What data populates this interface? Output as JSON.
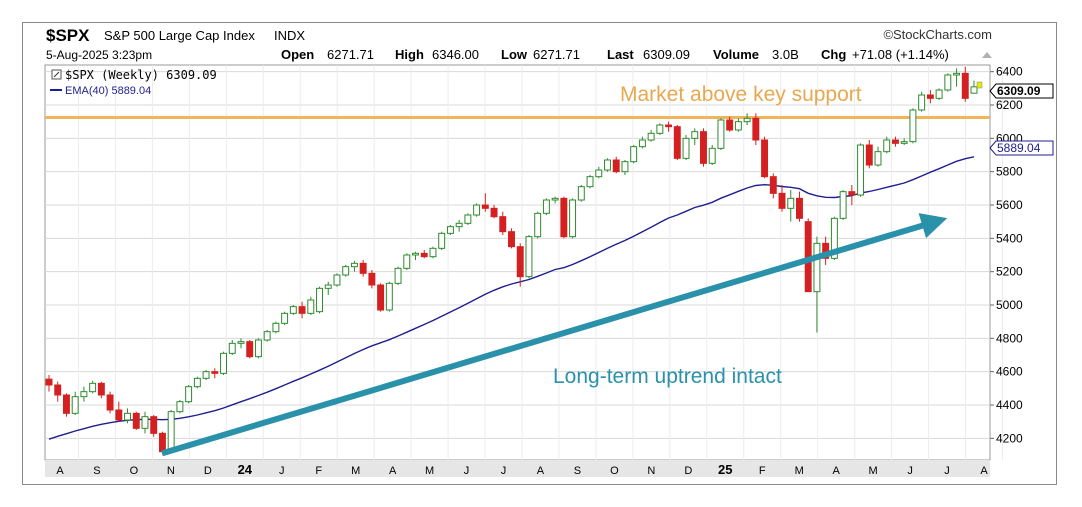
{
  "header": {
    "symbol": "$SPX",
    "name": "S&P 500 Large Cap Index",
    "exchange": "INDX",
    "copyright": "©StockCharts.com",
    "datetime": "5-Aug-2025 3:23pm",
    "open_label": "Open",
    "open": "6271.71",
    "high_label": "High",
    "high": "6346.00",
    "low_label": "Low",
    "low": "6271.71",
    "last_label": "Last",
    "last": "6309.09",
    "volume_label": "Volume",
    "volume": "3.0B",
    "chg_label": "Chg",
    "chg": "+71.08 (+1.14%)"
  },
  "legend": {
    "price_entry": "$SPX (Weekly) 6309.09",
    "ema_entry": "EMA(40) 5889.04"
  },
  "annotations": {
    "support_label": "Market above key support",
    "trend_label": "Long-term uptrend intact"
  },
  "price_tags": {
    "last": "6309.09",
    "ema": "5889.04"
  },
  "colors": {
    "up": "#2e8b2e",
    "down": "#d42020",
    "ema": "#1f1f8f",
    "support": "#f0b45a",
    "support_text": "#e8a850",
    "trend": "#2a91aa",
    "trend_text": "#2a91aa",
    "grid": "#d8d8d8",
    "axis_bg": "#e6e6e6"
  },
  "chart_data": {
    "type": "candlestick",
    "interval": "weekly",
    "ylim": [
      4070,
      6440
    ],
    "yticks": [
      4200,
      4400,
      4600,
      4800,
      5000,
      5200,
      5400,
      5600,
      5800,
      6000,
      6200,
      6400
    ],
    "x_ticks": [
      "A",
      "S",
      "O",
      "N",
      "D",
      "24",
      "J",
      "F",
      "M",
      "A",
      "M",
      "J",
      "J",
      "A",
      "S",
      "O",
      "N",
      "D",
      "25",
      "F",
      "M",
      "A",
      "M",
      "J",
      "J",
      "A"
    ],
    "support_level": 6125,
    "trend_line": {
      "from": [
        "2023-10-27",
        4110
      ],
      "to": [
        "2025-07-11",
        5490
      ]
    },
    "ohlc": [
      [
        4555,
        4580,
        4480,
        4520
      ],
      [
        4520,
        4540,
        4420,
        4460
      ],
      [
        4460,
        4470,
        4330,
        4350
      ],
      [
        4350,
        4480,
        4340,
        4450
      ],
      [
        4450,
        4510,
        4420,
        4480
      ],
      [
        4480,
        4545,
        4470,
        4530
      ],
      [
        4530,
        4540,
        4440,
        4460
      ],
      [
        4460,
        4480,
        4350,
        4370
      ],
      [
        4370,
        4420,
        4300,
        4310
      ],
      [
        4310,
        4380,
        4290,
        4350
      ],
      [
        4350,
        4360,
        4250,
        4260
      ],
      [
        4260,
        4360,
        4230,
        4330
      ],
      [
        4330,
        4340,
        4210,
        4230
      ],
      [
        4230,
        4240,
        4110,
        4120
      ],
      [
        4120,
        4370,
        4115,
        4360
      ],
      [
        4360,
        4430,
        4350,
        4420
      ],
      [
        4420,
        4520,
        4410,
        4510
      ],
      [
        4510,
        4570,
        4500,
        4560
      ],
      [
        4560,
        4610,
        4550,
        4600
      ],
      [
        4600,
        4620,
        4560,
        4590
      ],
      [
        4590,
        4720,
        4580,
        4710
      ],
      [
        4710,
        4790,
        4700,
        4770
      ],
      [
        4770,
        4800,
        4740,
        4780
      ],
      [
        4780,
        4790,
        4680,
        4690
      ],
      [
        4690,
        4800,
        4680,
        4790
      ],
      [
        4790,
        4850,
        4780,
        4840
      ],
      [
        4840,
        4900,
        4830,
        4890
      ],
      [
        4890,
        4960,
        4880,
        4950
      ],
      [
        4950,
        5000,
        4940,
        4990
      ],
      [
        4990,
        5020,
        4920,
        4950
      ],
      [
        4950,
        5050,
        4940,
        5030
      ],
      [
        4960,
        5110,
        4950,
        5100
      ],
      [
        5100,
        5140,
        5060,
        5120
      ],
      [
        5120,
        5190,
        5110,
        5180
      ],
      [
        5180,
        5240,
        5170,
        5230
      ],
      [
        5230,
        5265,
        5200,
        5250
      ],
      [
        5250,
        5270,
        5170,
        5190
      ],
      [
        5190,
        5210,
        5100,
        5120
      ],
      [
        5120,
        5130,
        4960,
        4970
      ],
      [
        4970,
        5140,
        4960,
        5130
      ],
      [
        5130,
        5230,
        5120,
        5220
      ],
      [
        5220,
        5310,
        5210,
        5300
      ],
      [
        5300,
        5320,
        5270,
        5310
      ],
      [
        5310,
        5330,
        5280,
        5290
      ],
      [
        5290,
        5350,
        5280,
        5340
      ],
      [
        5340,
        5440,
        5330,
        5430
      ],
      [
        5430,
        5480,
        5420,
        5470
      ],
      [
        5470,
        5510,
        5440,
        5490
      ],
      [
        5490,
        5550,
        5480,
        5540
      ],
      [
        5540,
        5610,
        5530,
        5600
      ],
      [
        5600,
        5670,
        5560,
        5580
      ],
      [
        5580,
        5600,
        5520,
        5530
      ],
      [
        5530,
        5560,
        5420,
        5440
      ],
      [
        5440,
        5460,
        5340,
        5350
      ],
      [
        5350,
        5370,
        5110,
        5170
      ],
      [
        5170,
        5420,
        5160,
        5410
      ],
      [
        5410,
        5560,
        5400,
        5550
      ],
      [
        5550,
        5640,
        5540,
        5630
      ],
      [
        5630,
        5650,
        5610,
        5640
      ],
      [
        5640,
        5650,
        5400,
        5410
      ],
      [
        5410,
        5640,
        5400,
        5630
      ],
      [
        5630,
        5720,
        5620,
        5710
      ],
      [
        5710,
        5780,
        5700,
        5770
      ],
      [
        5770,
        5830,
        5760,
        5810
      ],
      [
        5810,
        5880,
        5800,
        5870
      ],
      [
        5870,
        5890,
        5790,
        5800
      ],
      [
        5800,
        5870,
        5780,
        5860
      ],
      [
        5860,
        5960,
        5850,
        5950
      ],
      [
        5950,
        6010,
        5940,
        5990
      ],
      [
        5990,
        6050,
        5980,
        6030
      ],
      [
        6030,
        6090,
        6020,
        6080
      ],
      [
        6080,
        6100,
        6040,
        6070
      ],
      [
        6070,
        6080,
        5870,
        5880
      ],
      [
        5880,
        6020,
        5870,
        6000
      ],
      [
        6000,
        6060,
        5960,
        6040
      ],
      [
        6040,
        6060,
        5830,
        5850
      ],
      [
        5850,
        5960,
        5840,
        5940
      ],
      [
        5940,
        6120,
        5930,
        6110
      ],
      [
        6110,
        6130,
        6040,
        6050
      ],
      [
        6050,
        6120,
        6040,
        6100
      ],
      [
        6100,
        6150,
        6080,
        6120
      ],
      [
        6120,
        6150,
        5960,
        5990
      ],
      [
        5990,
        6010,
        5760,
        5770
      ],
      [
        5770,
        5790,
        5640,
        5670
      ],
      [
        5670,
        5720,
        5560,
        5580
      ],
      [
        5580,
        5690,
        5500,
        5640
      ],
      [
        5640,
        5680,
        5500,
        5520
      ],
      [
        5500,
        5520,
        5090,
        5080
      ],
      [
        5080,
        5410,
        4835,
        5370
      ],
      [
        5370,
        5410,
        5240,
        5280
      ],
      [
        5280,
        5530,
        5270,
        5520
      ],
      [
        5520,
        5690,
        5510,
        5680
      ],
      [
        5680,
        5720,
        5600,
        5660
      ],
      [
        5660,
        5970,
        5650,
        5960
      ],
      [
        5960,
        5990,
        5820,
        5840
      ],
      [
        5840,
        5950,
        5830,
        5920
      ],
      [
        5920,
        6010,
        5910,
        5990
      ],
      [
        5990,
        6010,
        5950,
        5970
      ],
      [
        5970,
        6000,
        5960,
        5980
      ],
      [
        5980,
        6180,
        5970,
        6170
      ],
      [
        6170,
        6280,
        6160,
        6260
      ],
      [
        6260,
        6290,
        6210,
        6240
      ],
      [
        6240,
        6300,
        6230,
        6290
      ],
      [
        6290,
        6390,
        6280,
        6380
      ],
      [
        6380,
        6420,
        6310,
        6390
      ],
      [
        6390,
        6430,
        6220,
        6240
      ],
      [
        6271,
        6346,
        6271,
        6309
      ]
    ],
    "ema40": [
      4195,
      4212,
      4228,
      4244,
      4258,
      4272,
      4284,
      4294,
      4302,
      4308,
      4312,
      4314,
      4314,
      4312,
      4314,
      4320,
      4329,
      4340,
      4353,
      4366,
      4382,
      4401,
      4420,
      4438,
      4457,
      4477,
      4498,
      4520,
      4542,
      4563,
      4586,
      4609,
      4633,
      4658,
      4683,
      4709,
      4733,
      4755,
      4773,
      4792,
      4814,
      4837,
      4860,
      4883,
      4907,
      4932,
      4958,
      4984,
      5010,
      5038,
      5064,
      5088,
      5109,
      5126,
      5139,
      5153,
      5172,
      5192,
      5213,
      5224,
      5243,
      5266,
      5290,
      5315,
      5340,
      5364,
      5387,
      5413,
      5440,
      5467,
      5495,
      5522,
      5540,
      5562,
      5585,
      5599,
      5616,
      5641,
      5661,
      5682,
      5702,
      5717,
      5722,
      5718,
      5711,
      5706,
      5698,
      5670,
      5655,
      5646,
      5645,
      5651,
      5656,
      5672,
      5681,
      5693,
      5706,
      5719,
      5732,
      5752,
      5774,
      5797,
      5818,
      5840,
      5862,
      5878,
      5889
    ]
  }
}
